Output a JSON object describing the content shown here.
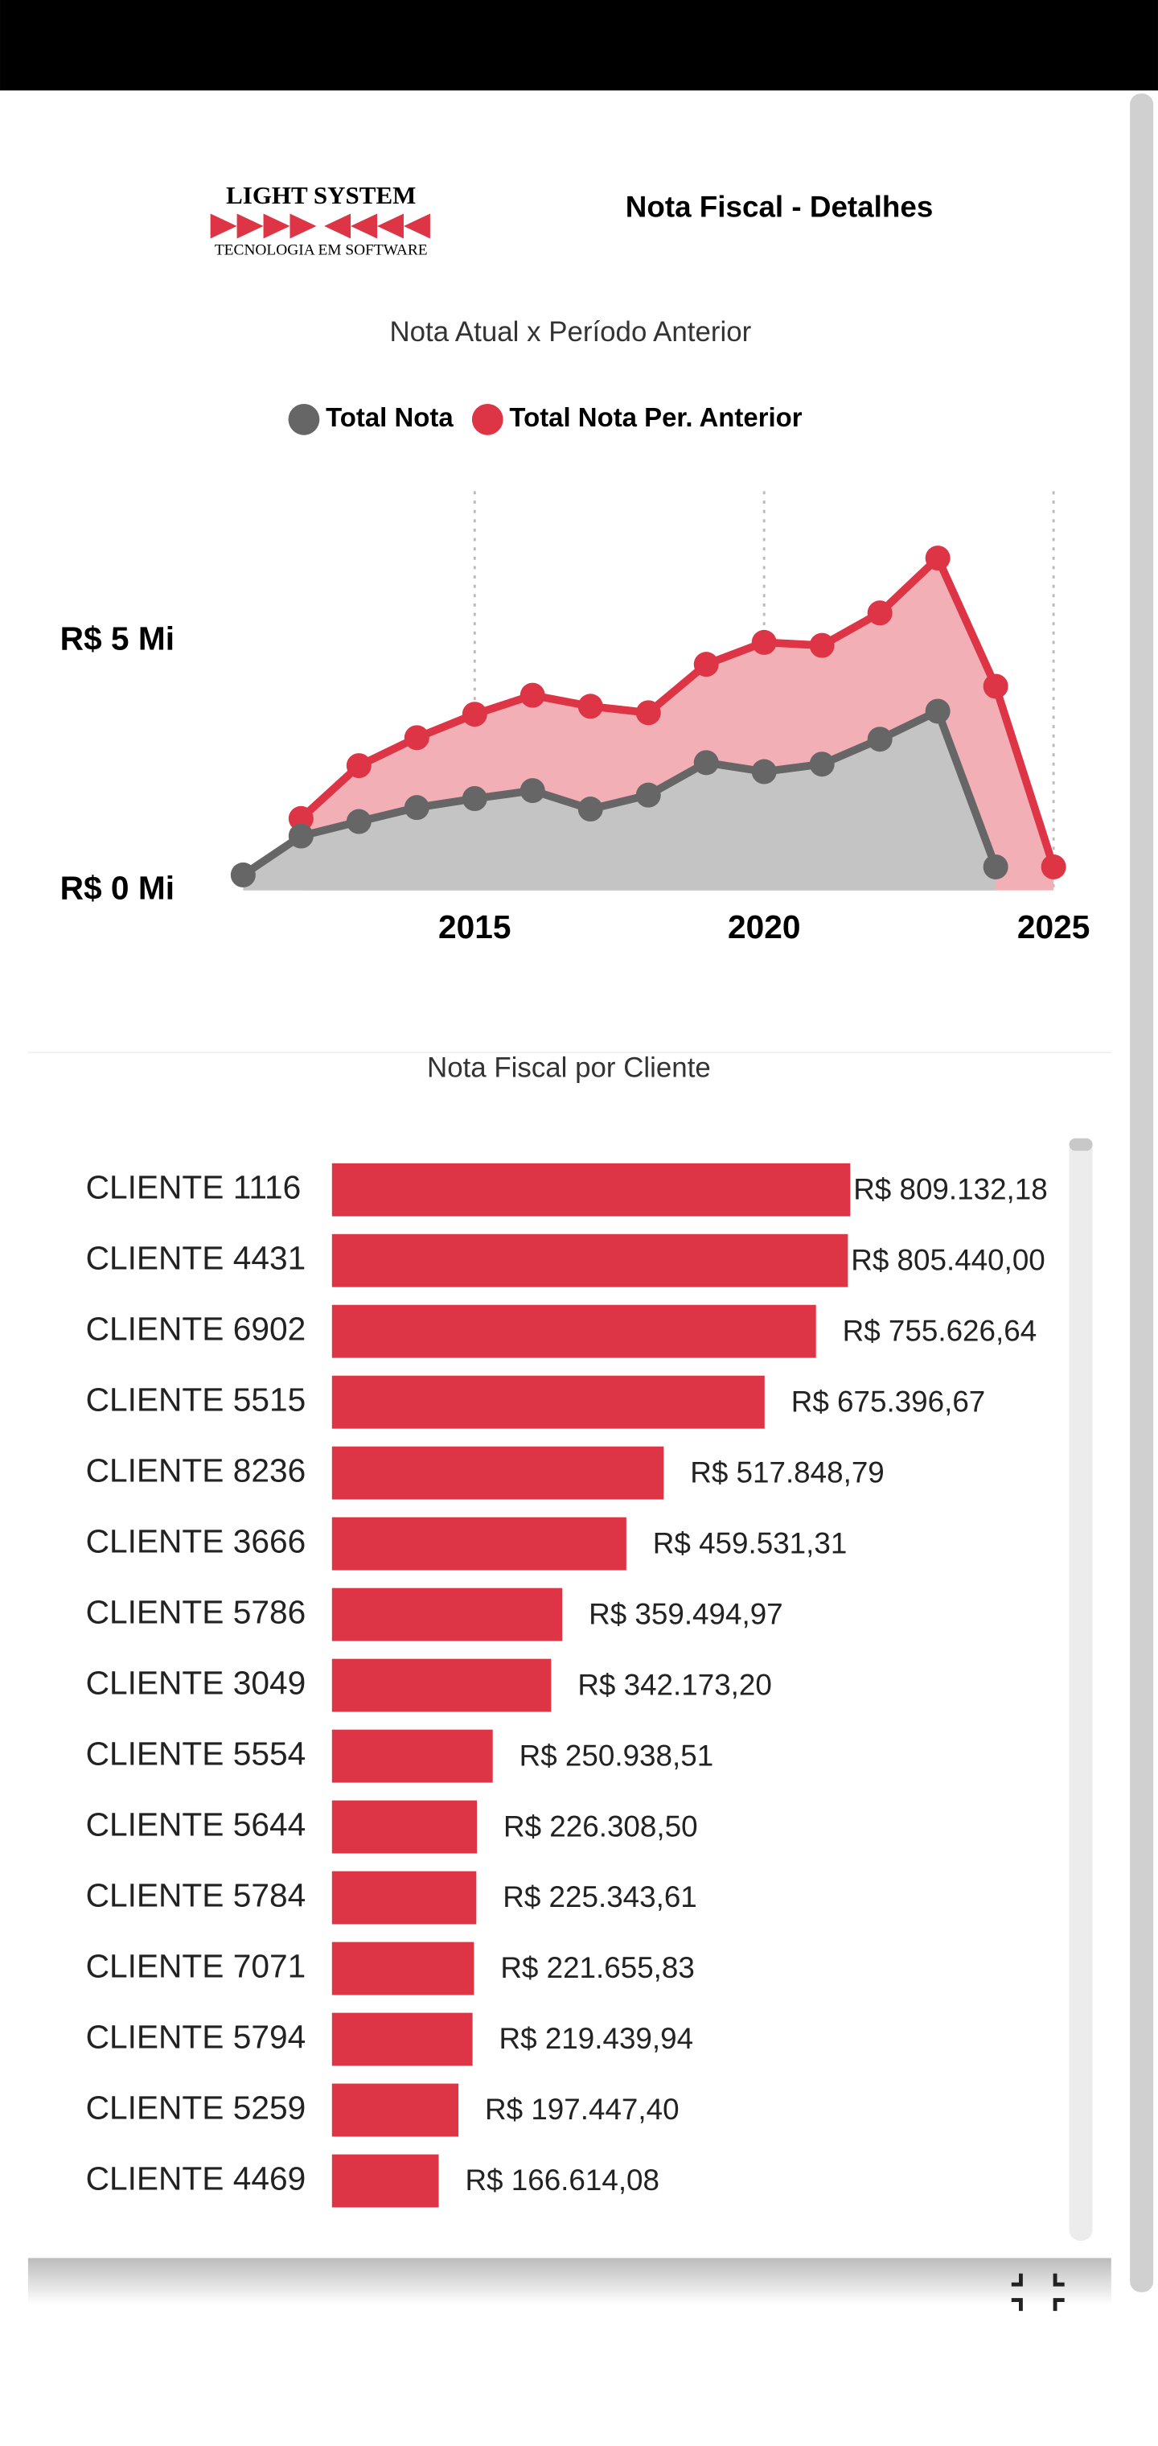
{
  "header": {
    "logo_title": "LIGHT SYSTEM",
    "logo_subtitle": "TECNOLOGIA EM SOFTWARE",
    "title": "Nota Fiscal - Detalhes"
  },
  "chart_data": [
    {
      "type": "line",
      "title": "Nota Atual x Período Anterior",
      "x": [
        2011,
        2012,
        2013,
        2014,
        2015,
        2016,
        2017,
        2018,
        2019,
        2020,
        2021,
        2022,
        2023,
        2024,
        2025
      ],
      "series": [
        {
          "name": "Total Nota",
          "color": "#666666",
          "area_color": "#c4c4c4",
          "values": [
            0.31,
            1.09,
            1.38,
            1.66,
            1.84,
            2.0,
            1.63,
            1.91,
            2.56,
            2.38,
            2.53,
            3.03,
            3.59,
            0.47,
            null
          ]
        },
        {
          "name": "Total Nota Per. Anterior",
          "color": "#dd3545",
          "area_color": "#f2b0b6",
          "values": [
            null,
            1.44,
            2.5,
            3.06,
            3.53,
            3.91,
            3.69,
            3.56,
            4.53,
            4.97,
            4.91,
            5.56,
            6.66,
            4.09,
            0.47
          ]
        }
      ],
      "xlim": [
        2011,
        2025
      ],
      "xticks": [
        2015,
        2020,
        2025
      ],
      "ylim": [
        0,
        8
      ],
      "yticks": [
        {
          "value": 0,
          "label": "R$ 0 Mi"
        },
        {
          "value": 5,
          "label": "R$ 5 Mi"
        }
      ],
      "grid": "x",
      "legend": "top"
    },
    {
      "type": "hbar",
      "title": "Nota Fiscal por Cliente",
      "color": "#dd3545",
      "categories": [
        "CLIENTE 1116",
        "CLIENTE 4431",
        "CLIENTE 6902",
        "CLIENTE 5515",
        "CLIENTE 8236",
        "CLIENTE 3666",
        "CLIENTE 5786",
        "CLIENTE 3049",
        "CLIENTE 5554",
        "CLIENTE 5644",
        "CLIENTE 5784",
        "CLIENTE 7071",
        "CLIENTE 5794",
        "CLIENTE 5259",
        "CLIENTE 4469"
      ],
      "values": [
        809132.18,
        805440.0,
        755626.64,
        675396.67,
        517848.79,
        459531.31,
        359494.97,
        342173.2,
        250938.51,
        226308.5,
        225343.61,
        221655.83,
        219439.94,
        197447.4,
        166614.08
      ],
      "value_labels": [
        "R$ 809.132,18",
        "R$ 805.440,00",
        "R$ 755.626,64",
        "R$ 675.396,67",
        "R$ 517.848,79",
        "R$ 459.531,31",
        "R$ 359.494,97",
        "R$ 342.173,20",
        "R$ 250.938,51",
        "R$ 226.308,50",
        "R$ 225.343,61",
        "R$ 221.655,83",
        "R$ 219.439,94",
        "R$ 197.447,40",
        "R$ 166.614,08"
      ],
      "xlim": [
        0,
        1000000
      ]
    }
  ]
}
